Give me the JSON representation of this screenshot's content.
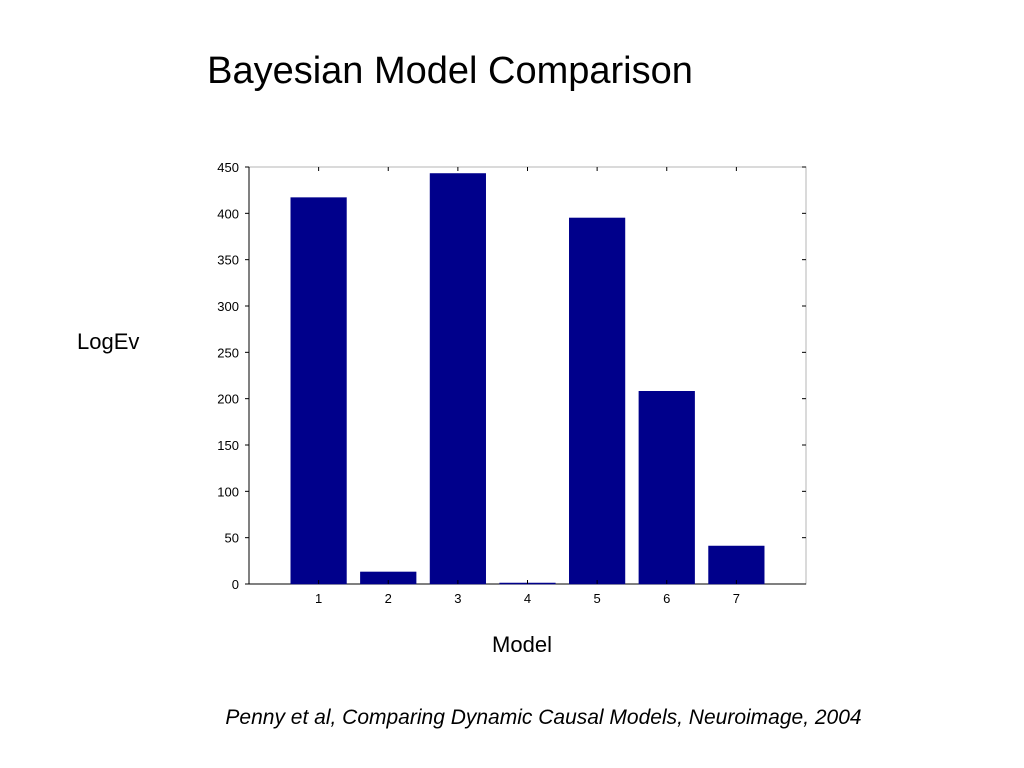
{
  "slide": {
    "title": "Bayesian Model Comparison",
    "citation": "Penny et al, Comparing Dynamic Causal Models, Neuroimage, 2004"
  },
  "chart_data": {
    "type": "bar",
    "title": "",
    "xlabel": "Model",
    "ylabel": "LogEv",
    "categories": [
      "1",
      "2",
      "3",
      "4",
      "5",
      "6",
      "7"
    ],
    "values": [
      417,
      13,
      443,
      0,
      395,
      208,
      41
    ],
    "ylim": [
      0,
      450
    ],
    "xlim": [
      0,
      8
    ],
    "yticks": [
      0,
      50,
      100,
      150,
      200,
      250,
      300,
      350,
      400,
      450
    ],
    "grid": false,
    "legend": "none",
    "bar_color": "#00008B"
  }
}
